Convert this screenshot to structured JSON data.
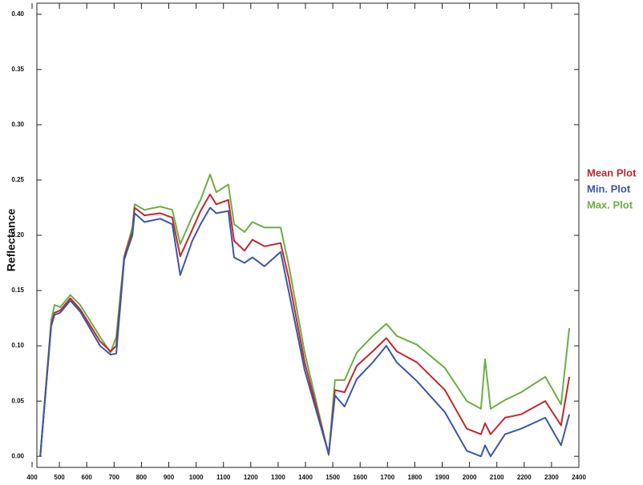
{
  "chart_data": {
    "type": "line",
    "y_label": "Reflectance",
    "x": [
      430,
      470,
      482,
      503,
      540,
      576,
      649,
      687,
      708,
      737,
      767,
      775,
      811,
      869,
      913,
      942,
      986,
      1016,
      1051,
      1074,
      1118,
      1139,
      1177,
      1206,
      1250,
      1309,
      1338,
      1397,
      1485,
      1508,
      1543,
      1588,
      1646,
      1696,
      1734,
      1808,
      1910,
      1990,
      2042,
      2057,
      2077,
      2130,
      2189,
      2277,
      2335,
      2365
    ],
    "series": [
      {
        "name": "Mean Plot",
        "color": "#c0282d",
        "values": [
          0.0,
          0.12,
          0.13,
          0.132,
          0.143,
          0.133,
          0.104,
          0.095,
          0.1,
          0.18,
          0.203,
          0.225,
          0.218,
          0.22,
          0.216,
          0.181,
          0.205,
          0.222,
          0.237,
          0.228,
          0.232,
          0.195,
          0.186,
          0.196,
          0.19,
          0.193,
          0.162,
          0.085,
          0.002,
          0.06,
          0.058,
          0.082,
          0.095,
          0.107,
          0.095,
          0.085,
          0.06,
          0.025,
          0.02,
          0.03,
          0.02,
          0.035,
          0.038,
          0.05,
          0.028,
          0.072
        ]
      },
      {
        "name": "Min. Plot",
        "color": "#3a57a7",
        "values": [
          0.0,
          0.118,
          0.128,
          0.13,
          0.141,
          0.131,
          0.1,
          0.092,
          0.093,
          0.178,
          0.2,
          0.22,
          0.212,
          0.215,
          0.21,
          0.164,
          0.195,
          0.21,
          0.225,
          0.22,
          0.222,
          0.18,
          0.175,
          0.18,
          0.172,
          0.185,
          0.15,
          0.078,
          0.002,
          0.055,
          0.045,
          0.07,
          0.085,
          0.1,
          0.085,
          0.068,
          0.04,
          0.005,
          0.0,
          0.01,
          0.0,
          0.02,
          0.025,
          0.035,
          0.01,
          0.038
        ]
      },
      {
        "name": "Max. Plot",
        "color": "#6cae45",
        "values": [
          0.0,
          0.123,
          0.137,
          0.135,
          0.146,
          0.137,
          0.108,
          0.094,
          0.108,
          0.181,
          0.207,
          0.228,
          0.223,
          0.226,
          0.223,
          0.192,
          0.217,
          0.232,
          0.255,
          0.239,
          0.246,
          0.21,
          0.203,
          0.212,
          0.207,
          0.207,
          0.174,
          0.094,
          0.001,
          0.069,
          0.069,
          0.094,
          0.109,
          0.12,
          0.109,
          0.101,
          0.08,
          0.05,
          0.043,
          0.088,
          0.043,
          0.051,
          0.058,
          0.072,
          0.047,
          0.116
        ]
      }
    ],
    "xlim": [
      400,
      2400
    ],
    "xticks": [
      400,
      500,
      600,
      700,
      800,
      900,
      1000,
      1100,
      1200,
      1300,
      1400,
      1500,
      1600,
      1700,
      1800,
      1900,
      2000,
      2100,
      2200,
      2300,
      2400
    ],
    "ylim": [
      -0.01,
      0.41
    ],
    "yticks": [
      {
        "value": 0,
        "label": "0.00"
      },
      0.05,
      {
        "value": 0.1,
        "label": "0.10"
      },
      0.15,
      {
        "value": 0.2,
        "label": "0.20"
      },
      0.25,
      {
        "value": 0.3,
        "label": "0.30"
      },
      0.35,
      {
        "value": 0.4,
        "label": "0.40"
      }
    ],
    "grid": false,
    "legend": "right"
  }
}
